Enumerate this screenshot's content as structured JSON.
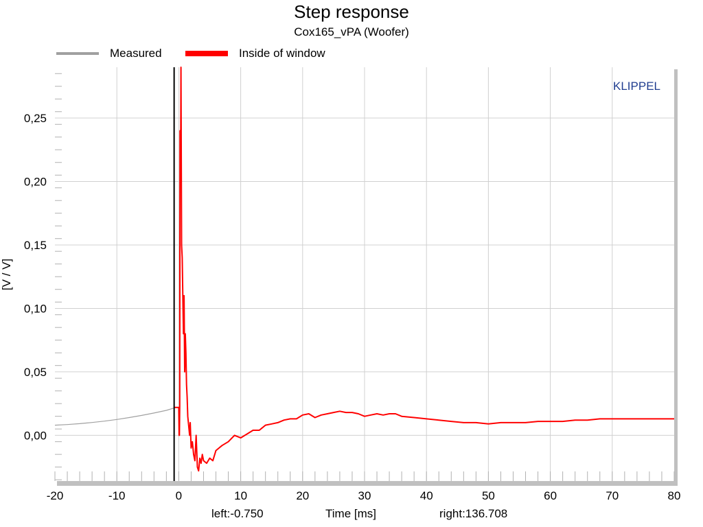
{
  "chart_data": {
    "type": "line",
    "title": "Step response",
    "subtitle": "Cox165_vPA (Woofer)",
    "xlabel": "Time [ms]",
    "ylabel": "[V / V]",
    "xlim": [
      -20,
      80
    ],
    "ylim": [
      -0.036,
      0.29
    ],
    "x_ticks": [
      -20,
      -10,
      0,
      10,
      20,
      30,
      40,
      50,
      60,
      70,
      80
    ],
    "x_tick_labels": [
      "-20",
      "-10",
      "0",
      "10",
      "20",
      "30",
      "40",
      "50",
      "60",
      "70",
      "80"
    ],
    "y_ticks": [
      0.0,
      0.05,
      0.1,
      0.15,
      0.2,
      0.25
    ],
    "y_tick_labels": [
      "0,00",
      "0,05",
      "0,10",
      "0,15",
      "0,20",
      "0,25"
    ],
    "grid": true,
    "legend_position": "top-left",
    "watermark": "KLIPPEL",
    "cursor_x": -0.75,
    "left_label": "left:-0.750",
    "right_label": "right:136.708",
    "series": [
      {
        "name": "Measured",
        "color": "#a0a0a0",
        "x": [
          -20,
          -18,
          -16,
          -14,
          -12,
          -10,
          -8,
          -6,
          -4,
          -2,
          -0.75
        ],
        "y": [
          0.008,
          0.0085,
          0.0092,
          0.0101,
          0.0112,
          0.0125,
          0.014,
          0.0157,
          0.0176,
          0.0197,
          0.0215
        ]
      },
      {
        "name": "Inside of window",
        "color": "#ff0000",
        "x": [
          -0.75,
          0.0,
          0.05,
          0.1,
          0.15,
          0.2,
          0.3,
          0.35,
          0.45,
          0.55,
          0.65,
          0.75,
          0.85,
          0.95,
          1.05,
          1.15,
          1.25,
          1.35,
          1.45,
          1.55,
          1.65,
          1.75,
          1.85,
          2.0,
          2.2,
          2.4,
          2.6,
          2.8,
          3.0,
          3.2,
          3.4,
          3.6,
          3.8,
          4.0,
          4.5,
          5.0,
          5.5,
          6.0,
          6.5,
          7.0,
          8.0,
          9.0,
          10.0,
          11.0,
          12.0,
          13.0,
          14.0,
          15.0,
          16.0,
          17.0,
          18.0,
          19.0,
          20.0,
          21.0,
          22.0,
          23.0,
          24.0,
          25.0,
          26.0,
          27.0,
          28.0,
          29.0,
          30.0,
          31.0,
          32.0,
          33.0,
          34.0,
          35.0,
          36.0,
          38.0,
          40.0,
          42.0,
          44.0,
          46.0,
          48.0,
          50.0,
          52.0,
          54.0,
          56.0,
          58.0,
          60.0,
          62.0,
          64.0,
          66.0,
          68.0,
          70.0,
          72.0,
          74.0,
          76.0,
          78.0,
          80.0
        ],
        "y": [
          0.022,
          0.022,
          0.0,
          0.0,
          0.022,
          0.24,
          0.2,
          0.29,
          0.15,
          0.14,
          0.11,
          0.08,
          0.11,
          0.05,
          0.08,
          0.065,
          0.04,
          0.03,
          0.015,
          0.01,
          0.005,
          0.0,
          0.01,
          -0.01,
          -0.005,
          -0.015,
          -0.02,
          0.0,
          -0.025,
          -0.028,
          -0.018,
          -0.022,
          -0.015,
          -0.02,
          -0.022,
          -0.018,
          -0.02,
          -0.012,
          -0.01,
          -0.008,
          -0.005,
          0.0,
          -0.002,
          0.001,
          0.004,
          0.004,
          0.008,
          0.009,
          0.01,
          0.012,
          0.013,
          0.013,
          0.016,
          0.017,
          0.014,
          0.016,
          0.017,
          0.018,
          0.019,
          0.018,
          0.018,
          0.017,
          0.015,
          0.016,
          0.017,
          0.016,
          0.017,
          0.017,
          0.015,
          0.014,
          0.013,
          0.012,
          0.011,
          0.01,
          0.01,
          0.009,
          0.01,
          0.01,
          0.01,
          0.011,
          0.011,
          0.011,
          0.012,
          0.012,
          0.013,
          0.013,
          0.013,
          0.013,
          0.013,
          0.013,
          0.013
        ]
      }
    ]
  }
}
